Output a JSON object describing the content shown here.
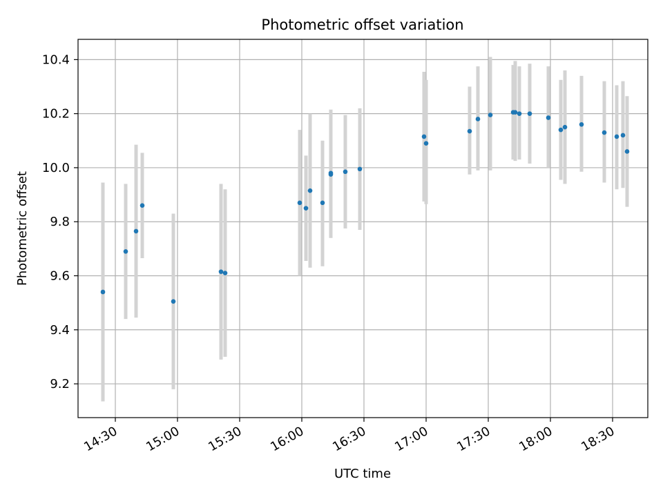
{
  "chart_data": {
    "type": "scatter",
    "title": "Photometric offset variation",
    "xlabel": "UTC time",
    "ylabel": "Photometric offset",
    "xlim": [
      "14:12",
      "18:47"
    ],
    "ylim": [
      9.075,
      10.475
    ],
    "grid": true,
    "x_ticks": [
      "14:30",
      "15:00",
      "15:30",
      "16:00",
      "16:30",
      "17:00",
      "17:30",
      "18:00",
      "18:30"
    ],
    "y_ticks": [
      9.2,
      9.4,
      9.6,
      9.8,
      10.0,
      10.2,
      10.4
    ],
    "y_tick_labels": [
      "9.2",
      "9.4",
      "9.6",
      "9.8",
      "10.0",
      "10.2",
      "10.4"
    ],
    "colors": {
      "point": "#1f77b4",
      "errorbar": "#d3d3d3",
      "grid": "#b0b0b0"
    },
    "series": [
      {
        "points": [
          {
            "x": "14:24",
            "y": 9.54,
            "lo": 9.135,
            "hi": 9.945
          },
          {
            "x": "14:35",
            "y": 9.69,
            "lo": 9.44,
            "hi": 9.94
          },
          {
            "x": "14:40",
            "y": 9.765,
            "lo": 9.445,
            "hi": 10.085
          },
          {
            "x": "14:43",
            "y": 9.86,
            "lo": 9.665,
            "hi": 10.055
          },
          {
            "x": "14:58",
            "y": 9.505,
            "lo": 9.18,
            "hi": 9.83
          },
          {
            "x": "15:21",
            "y": 9.615,
            "lo": 9.29,
            "hi": 9.94
          },
          {
            "x": "15:23",
            "y": 9.61,
            "lo": 9.3,
            "hi": 9.92
          },
          {
            "x": "15:59",
            "y": 9.87,
            "lo": 9.6,
            "hi": 10.14
          },
          {
            "x": "16:02",
            "y": 9.85,
            "lo": 9.655,
            "hi": 10.045
          },
          {
            "x": "16:04",
            "y": 9.915,
            "lo": 9.63,
            "hi": 10.2
          },
          {
            "x": "16:10",
            "y": 9.87,
            "lo": 9.635,
            "hi": 10.1
          },
          {
            "x": "16:14",
            "y": 9.98,
            "lo": 9.74,
            "hi": 10.215
          },
          {
            "x": "16:14",
            "y": 9.975,
            "lo": 9.75,
            "hi": 10.2
          },
          {
            "x": "16:21",
            "y": 9.985,
            "lo": 9.775,
            "hi": 10.195
          },
          {
            "x": "16:28",
            "y": 9.995,
            "lo": 9.77,
            "hi": 10.22
          },
          {
            "x": "16:59",
            "y": 10.115,
            "lo": 9.875,
            "hi": 10.355
          },
          {
            "x": "17:00",
            "y": 10.09,
            "lo": 9.865,
            "hi": 10.325
          },
          {
            "x": "17:21",
            "y": 10.135,
            "lo": 9.975,
            "hi": 10.3
          },
          {
            "x": "17:25",
            "y": 10.18,
            "lo": 9.99,
            "hi": 10.375
          },
          {
            "x": "17:31",
            "y": 10.195,
            "lo": 9.99,
            "hi": 10.41
          },
          {
            "x": "17:42",
            "y": 10.205,
            "lo": 10.03,
            "hi": 10.38
          },
          {
            "x": "17:43",
            "y": 10.205,
            "lo": 10.025,
            "hi": 10.395
          },
          {
            "x": "17:45",
            "y": 10.2,
            "lo": 10.03,
            "hi": 10.375
          },
          {
            "x": "17:50",
            "y": 10.2,
            "lo": 10.015,
            "hi": 10.385
          },
          {
            "x": "17:59",
            "y": 10.185,
            "lo": 10.0,
            "hi": 10.375
          },
          {
            "x": "18:05",
            "y": 10.14,
            "lo": 9.955,
            "hi": 10.325
          },
          {
            "x": "18:07",
            "y": 10.15,
            "lo": 9.94,
            "hi": 10.36
          },
          {
            "x": "18:15",
            "y": 10.16,
            "lo": 9.985,
            "hi": 10.34
          },
          {
            "x": "18:26",
            "y": 10.13,
            "lo": 9.945,
            "hi": 10.32
          },
          {
            "x": "18:32",
            "y": 10.115,
            "lo": 9.92,
            "hi": 10.305
          },
          {
            "x": "18:35",
            "y": 10.12,
            "lo": 9.925,
            "hi": 10.32
          },
          {
            "x": "18:37",
            "y": 10.06,
            "lo": 9.855,
            "hi": 10.265
          }
        ]
      }
    ]
  }
}
